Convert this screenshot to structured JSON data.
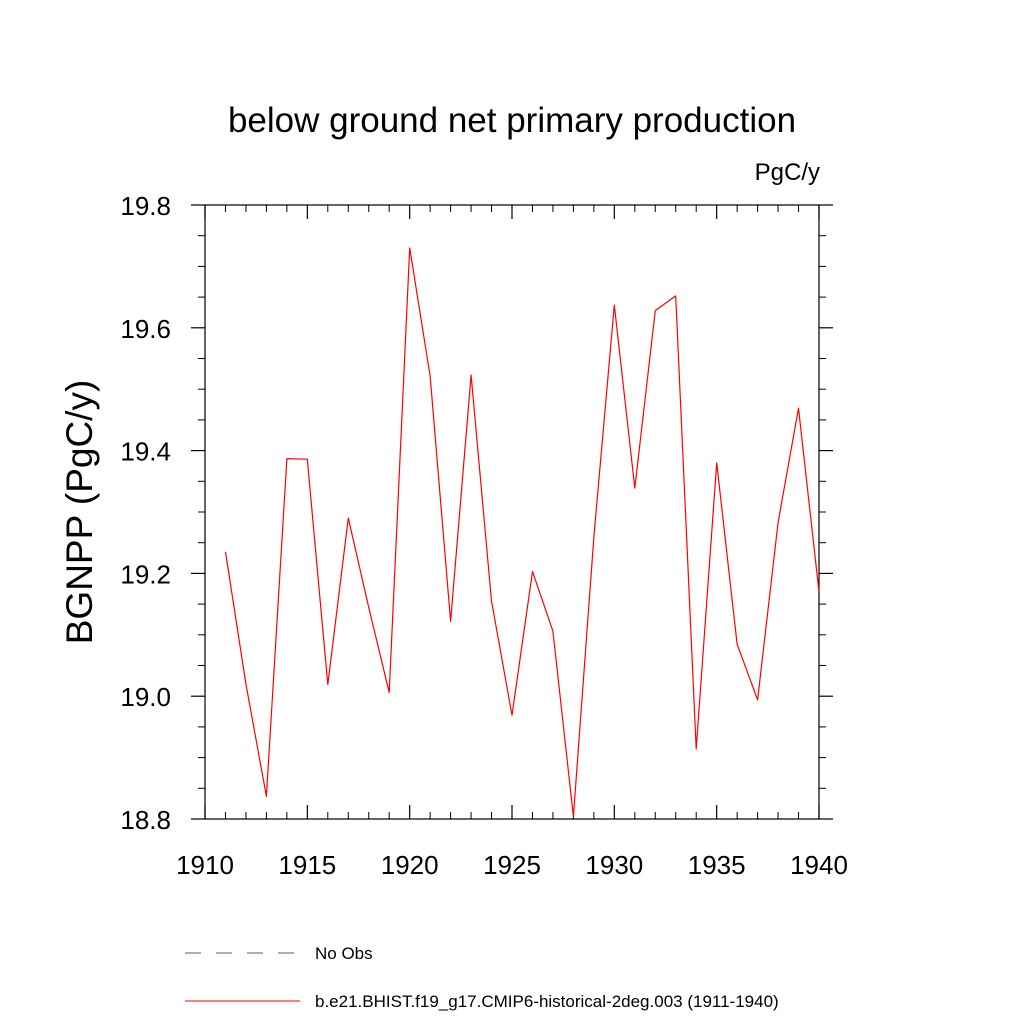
{
  "chart_data": {
    "type": "line",
    "title": "below ground net primary production",
    "units_label": "PgC/y",
    "ylabel": "BGNPP  (PgC/y)",
    "xlabel": "",
    "xlim": [
      1910,
      1940
    ],
    "ylim": [
      18.8,
      19.8
    ],
    "x_ticks": [
      1910,
      1915,
      1920,
      1925,
      1930,
      1935,
      1940
    ],
    "x_tick_labels": [
      "1910",
      "1915",
      "1920",
      "1925",
      "1930",
      "1935",
      "1940"
    ],
    "y_ticks": [
      18.8,
      19.0,
      19.2,
      19.4,
      19.6,
      19.8
    ],
    "y_tick_labels": [
      "18.8",
      "19.0",
      "19.2",
      "19.4",
      "19.6",
      "19.8"
    ],
    "grid": false,
    "legend_position": "bottom",
    "series": [
      {
        "name": "b.e21.BHIST.f19_g17.CMIP6-historical-2deg.003 (1911-1940)",
        "color": "#ff0000",
        "style": "solid",
        "x": [
          1911,
          1912,
          1913,
          1914,
          1915,
          1916,
          1917,
          1918,
          1919,
          1920,
          1921,
          1922,
          1923,
          1924,
          1925,
          1926,
          1927,
          1928,
          1929,
          1930,
          1931,
          1932,
          1933,
          1934,
          1935,
          1936,
          1937,
          1938,
          1939,
          1940
        ],
        "y": [
          19.235,
          19.02,
          18.837,
          19.387,
          19.386,
          19.019,
          19.29,
          19.145,
          19.006,
          19.73,
          19.522,
          19.122,
          19.523,
          19.155,
          18.969,
          19.203,
          19.106,
          18.804,
          19.26,
          19.637,
          19.339,
          19.628,
          19.652,
          18.914,
          19.38,
          19.085,
          18.994,
          19.283,
          19.469,
          19.17
        ]
      }
    ],
    "legend": [
      {
        "label": "No Obs",
        "color": "#5555aa",
        "style": "dashed"
      },
      {
        "label": "b.e21.BHIST.f19_g17.CMIP6-historical-2deg.003 (1911-1940)",
        "color": "#ff0000",
        "style": "solid"
      }
    ]
  }
}
